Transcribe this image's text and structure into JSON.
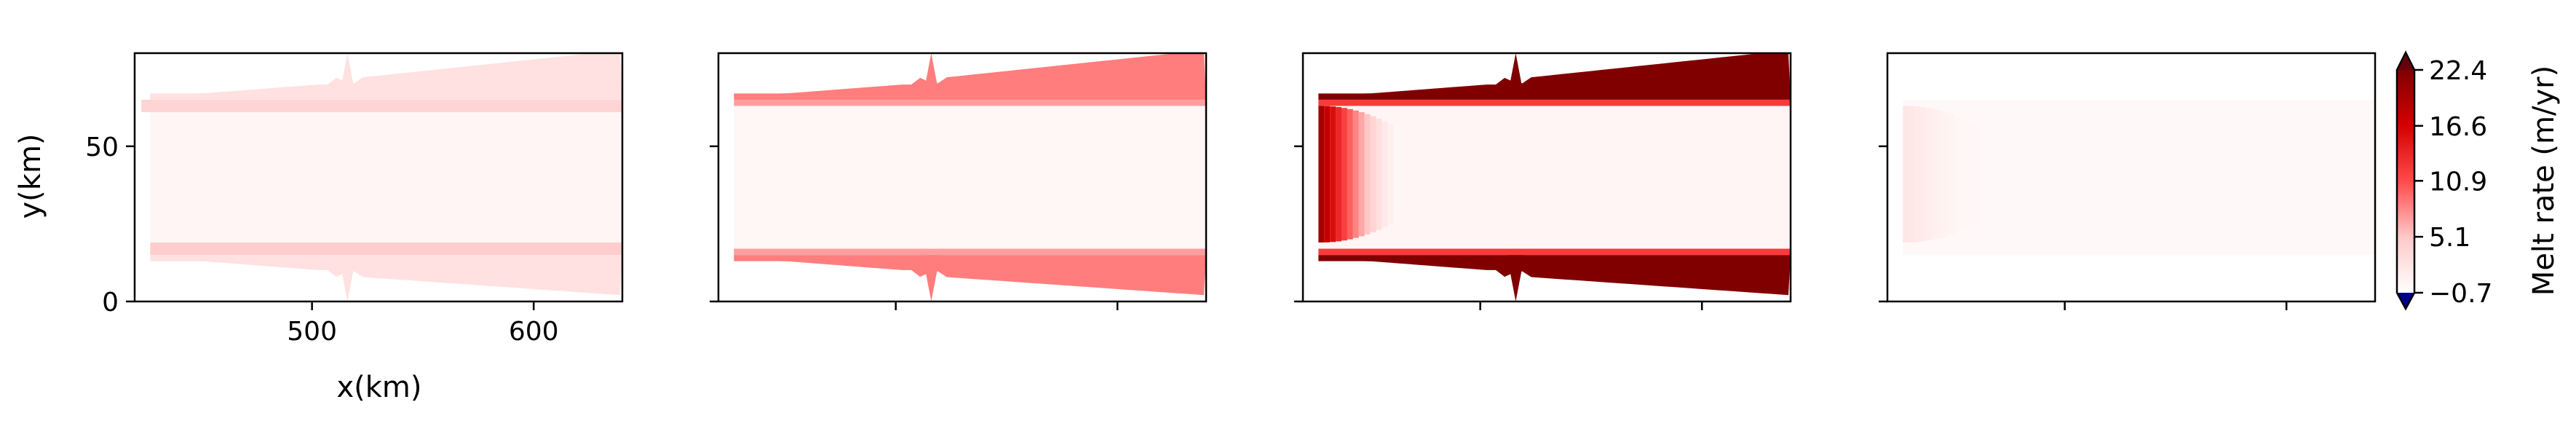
{
  "chart_data": [
    {
      "type": "heatmap",
      "panel": 1,
      "xlabel": "x(km)",
      "ylabel": "y(km)",
      "xlim": [
        420,
        640
      ],
      "ylim": [
        0,
        80
      ],
      "xticks": [
        500,
        600
      ],
      "yticks": [
        0,
        50
      ],
      "xtick_labels": [
        "500",
        "600"
      ],
      "ytick_labels": [
        "0",
        "50"
      ],
      "ice_front_km": 640,
      "description_values": {
        "cavity_melt": 0.3,
        "lower_channel_melt": 4.5,
        "upper_channel_melt": 3.8,
        "outer_band_melt": 2.5
      }
    },
    {
      "type": "heatmap",
      "panel": 2,
      "xlim": [
        420,
        640
      ],
      "ylim": [
        0,
        80
      ],
      "xticks": [
        500,
        600
      ],
      "yticks": [
        0,
        50
      ],
      "description_values": {
        "cavity_melt": 0.2,
        "outer_band_melt": 8.5,
        "channel_melt": 7.0
      }
    },
    {
      "type": "heatmap",
      "panel": 3,
      "xlim": [
        420,
        640
      ],
      "ylim": [
        0,
        80
      ],
      "xticks": [
        500,
        600
      ],
      "yticks": [
        0,
        50
      ],
      "description_values": {
        "cavity_melt": 0.3,
        "grounding_line_melt": 20.0,
        "outer_band_melt": 22.4,
        "channel_melt": 12.0
      }
    },
    {
      "type": "heatmap",
      "panel": 4,
      "xlim": [
        420,
        640
      ],
      "ylim": [
        0,
        80
      ],
      "xticks": [
        500,
        600
      ],
      "yticks": [
        0,
        50
      ],
      "description_values": {
        "cavity_melt": 0.0,
        "grounding_line_melt": 2.0
      }
    }
  ],
  "colorbar": {
    "label": "Melt rate (m/yr)",
    "vmin": -0.7,
    "vmax": 22.4,
    "ticks": [
      -0.7,
      5.1,
      10.9,
      16.6,
      22.4
    ],
    "tick_labels": [
      "−0.7",
      "5.1",
      "10.9",
      "16.6",
      "22.4"
    ],
    "extend": "both",
    "under_color": "#00008b",
    "over_color": "#67000d",
    "colormap": [
      "#fff5f8",
      "#ffd6d6",
      "#ff6b6b",
      "#e60000",
      "#8b0000"
    ]
  }
}
